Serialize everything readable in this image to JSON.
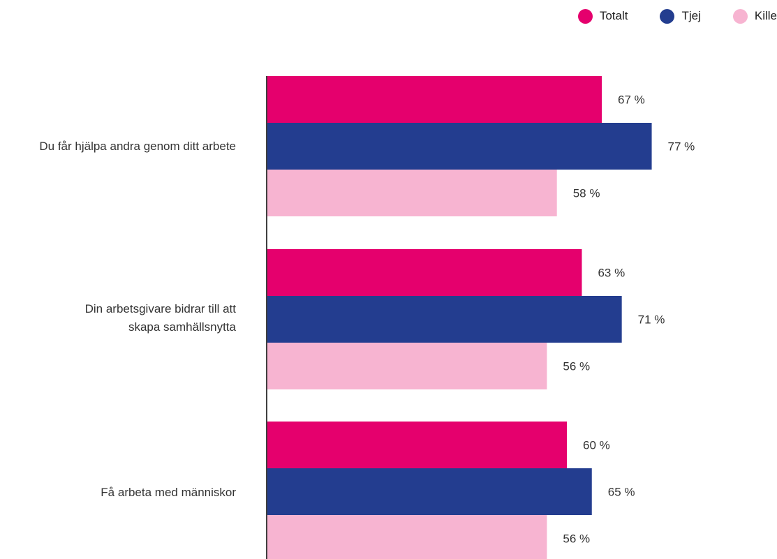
{
  "legend": [
    {
      "label": "Totalt",
      "color": "#e5006d"
    },
    {
      "label": "Tjej",
      "color": "#233d8f"
    },
    {
      "label": "Kille",
      "color": "#f7b4d1"
    }
  ],
  "chart_data": {
    "type": "bar",
    "orientation": "horizontal",
    "categories": [
      "Du får hjälpa andra genom ditt arbete",
      "Din arbetsgivare bidrar till att skapa samhällsnytta",
      "Få arbeta med människor"
    ],
    "series": [
      {
        "name": "Totalt",
        "color": "#e5006d",
        "values": [
          67,
          63,
          60
        ],
        "labels": [
          "67 %",
          "63 %",
          "60 %"
        ]
      },
      {
        "name": "Tjej",
        "color": "#233d8f",
        "values": [
          77,
          71,
          65
        ],
        "labels": [
          "77 %",
          "71 %",
          "65 %"
        ]
      },
      {
        "name": "Kille",
        "color": "#f7b4d1",
        "values": [
          58,
          56,
          56
        ],
        "labels": [
          "58 %",
          "56 %",
          "56 %"
        ]
      }
    ],
    "xlim": [
      0,
      100
    ],
    "grid": false,
    "legend_position": "top-right"
  }
}
